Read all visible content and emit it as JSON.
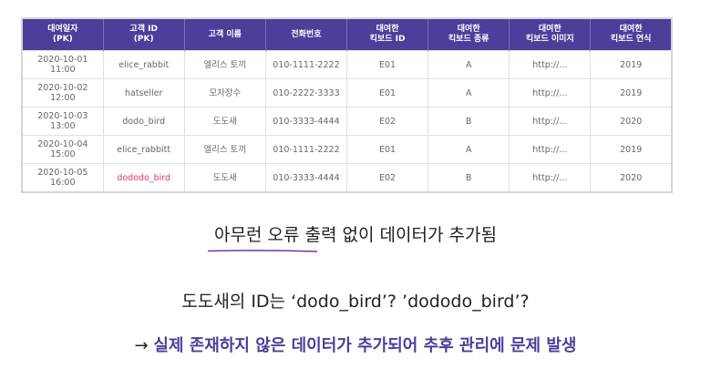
{
  "table": {
    "headers": [
      [
        "대여일자",
        "(PK)"
      ],
      [
        "고객 ID",
        "(PK)"
      ],
      [
        "고객 이름",
        ""
      ],
      [
        "전화번호",
        ""
      ],
      [
        "대여한",
        "킥보드 ID"
      ],
      [
        "대여한",
        "킥보드 종류"
      ],
      [
        "대여한",
        "킥보드 이미지"
      ],
      [
        "대여한",
        "킥보드 연식"
      ]
    ],
    "rows": [
      [
        [
          "2020-10-01",
          "11:00"
        ],
        "elice_rabbit",
        "엘리스 토끼",
        "010-1111-2222",
        "E01",
        "A",
        "http://...",
        "2019"
      ],
      [
        [
          "2020-10-02",
          "12:00"
        ],
        "hatseller",
        "모자장수",
        "010-2222-3333",
        "E01",
        "A",
        "http://...",
        "2019"
      ],
      [
        [
          "2020-10-03",
          "13:00"
        ],
        "dodo_bird",
        "도도새",
        "010-3333-4444",
        "E02",
        "B",
        "http://...",
        "2020"
      ],
      [
        [
          "2020-10-04",
          "15:00"
        ],
        "elice_rabbitt",
        "엘리스 토끼",
        "010-1111-2222",
        "E01",
        "A",
        "http://...",
        "2019"
      ],
      [
        [
          "2020-10-05",
          "16:00"
        ],
        "dododo_bird",
        "도도새",
        "010-3333-4444",
        "E02",
        "B",
        "http://...",
        "2020"
      ]
    ],
    "highlight_color": "#e0337a",
    "header_color": "#4b3f9a"
  },
  "text": {
    "line1": "아무런 오류 출력 없이 데이터가 추가됨",
    "line2": "도도새의 ID는 ‘dodo_bird’? ’dododo_bird’?",
    "arrow": "→ ",
    "line3": "실제 존재하지 않은 데이터가 추가되어 추후 관리에 문제 발생"
  }
}
